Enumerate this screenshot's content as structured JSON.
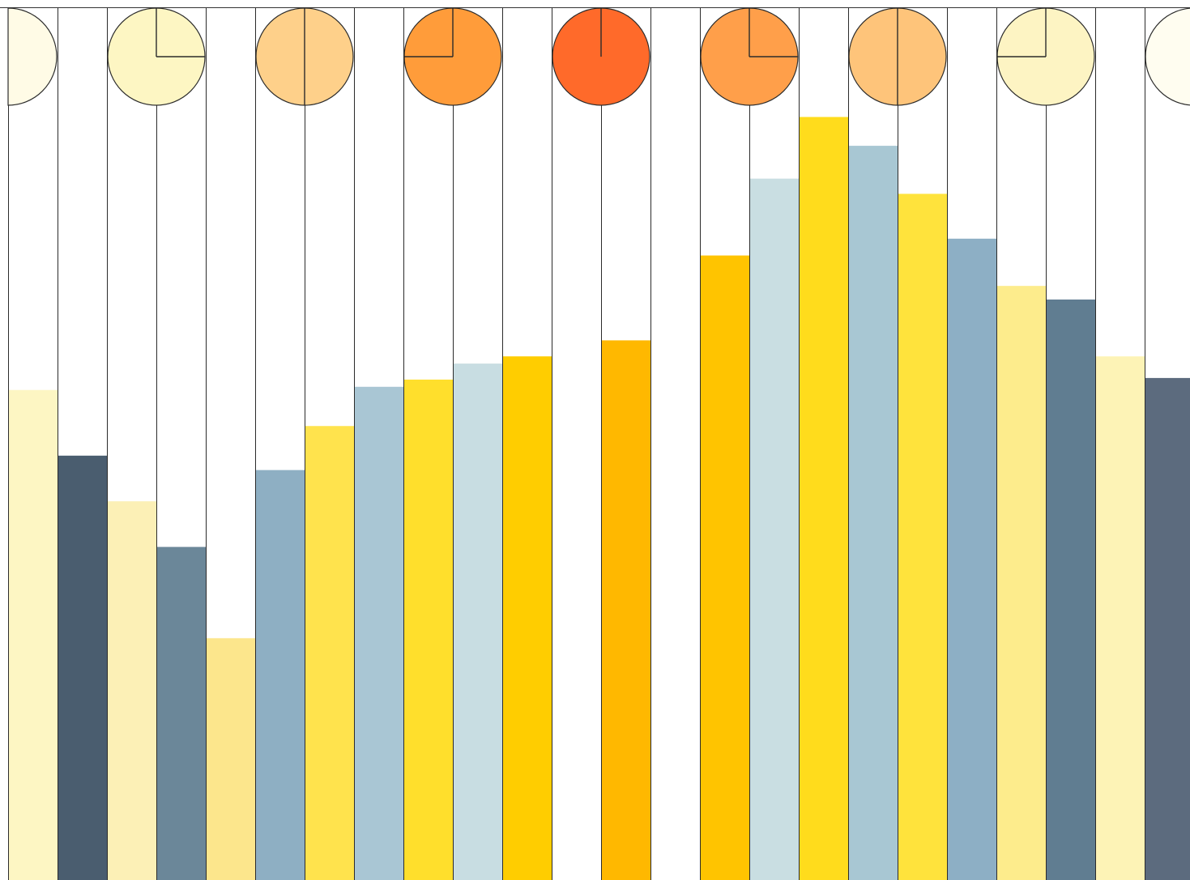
{
  "chart_data": {
    "type": "bar",
    "title": "",
    "xlabel": "",
    "ylabel": "",
    "ylim": [
      0,
      1090
    ],
    "grid": false,
    "legend": "none",
    "categories": [
      "",
      "",
      "",
      "",
      "",
      "",
      "",
      "",
      "",
      "",
      "",
      "",
      "",
      "",
      "",
      "",
      "",
      "",
      "",
      "",
      "",
      "",
      "",
      ""
    ],
    "values": [
      612,
      530,
      473,
      416,
      302,
      512,
      567,
      616,
      625,
      645,
      654,
      0,
      674,
      0,
      780,
      876,
      953,
      917,
      857,
      801,
      742,
      725,
      654,
      627
    ],
    "bar_colors": [
      "#fdf6c3",
      "#4a5d6f",
      "#fcf0b6",
      "#6b8799",
      "#fce68c",
      "#8eafc3",
      "#ffe34d",
      "#a9c6d4",
      "#ffdf2c",
      "#c8dde2",
      "#ffcd00",
      "#ffffff",
      "#ffb800",
      "#ffffff",
      "#ffc400",
      "#c9dee2",
      "#ffdc1c",
      "#a8c7d3",
      "#ffe33c",
      "#8dafc5",
      "#fdec8c",
      "#607d91",
      "#fdf3b6",
      "#5c6b7e"
    ],
    "markers": [
      {
        "fill": "#fffbe6",
        "style": "half-right"
      },
      {
        "fill": "#fdf6c3",
        "hands": [
          0,
          90
        ]
      },
      {
        "fill": "#fed08a",
        "hands": [
          0,
          180
        ]
      },
      {
        "fill": "#ff9c3a",
        "hands": [
          0,
          270
        ]
      },
      {
        "fill": "#ff6a2a",
        "hands": [
          0
        ]
      },
      {
        "fill": "#ff9f4a",
        "hands": [
          0,
          90
        ]
      },
      {
        "fill": "#fec47a",
        "hands": [
          0,
          180
        ]
      },
      {
        "fill": "#fdf4c3",
        "hands": [
          0,
          270
        ]
      },
      {
        "fill": "#fffdf0",
        "style": "half-left"
      }
    ]
  }
}
